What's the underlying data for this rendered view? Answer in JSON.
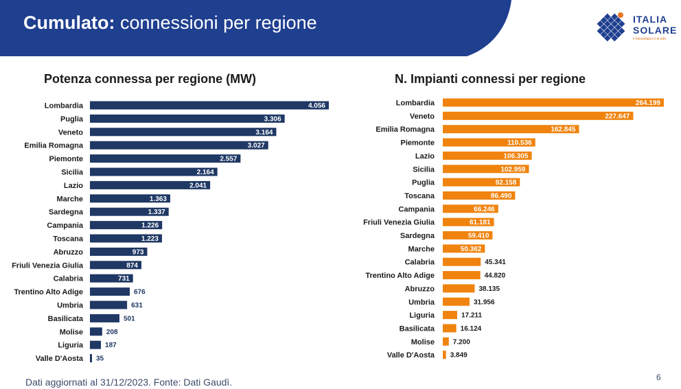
{
  "header": {
    "title_bold": "Cumulato:",
    "title_rest": "connessioni per regione"
  },
  "logo": {
    "line1": "ITALIA",
    "line2": "SOLARE",
    "tagline": "il fotovoltaico è di tutti"
  },
  "colors": {
    "header_bg": "#1f3f8f",
    "navy_bar": "#1f3864",
    "orange_bar": "#f0830e",
    "logo_blue": "#1f3f8f",
    "logo_orange": "#e87722"
  },
  "chart_data": [
    {
      "type": "bar",
      "orientation": "horizontal",
      "title": "Potenza connessa per regione (MW)",
      "categories": [
        "Lombardia",
        "Puglia",
        "Veneto",
        "Emilia Romagna",
        "Piemonte",
        "Sicilia",
        "Lazio",
        "Marche",
        "Sardegna",
        "Campania",
        "Toscana",
        "Abruzzo",
        "Friuli Venezia Giulia",
        "Calabria",
        "Trentino Alto Adige",
        "Umbria",
        "Basilicata",
        "Molise",
        "Liguria",
        "Valle D'Aosta"
      ],
      "values": [
        4056,
        3306,
        3164,
        3027,
        2557,
        2164,
        2041,
        1363,
        1337,
        1226,
        1223,
        973,
        874,
        731,
        676,
        631,
        501,
        208,
        187,
        35
      ],
      "labels": [
        "4.056",
        "3.306",
        "3.164",
        "3.027",
        "2.557",
        "2.164",
        "2.041",
        "1.363",
        "1.337",
        "1.226",
        "1.223",
        "973",
        "874",
        "731",
        "676",
        "631",
        "501",
        "208",
        "187",
        "35"
      ],
      "color": "#1f3864"
    },
    {
      "type": "bar",
      "orientation": "horizontal",
      "title": "N. Impianti connessi per regione",
      "categories": [
        "Lombardia",
        "Veneto",
        "Emilia Romagna",
        "Piemonte",
        "Lazio",
        "Sicilia",
        "Puglia",
        "Toscana",
        "Campania",
        "Friuli Venezia Giulia",
        "Sardegna",
        "Marche",
        "Calabria",
        "Trentino Alto Adige",
        "Abruzzo",
        "Umbria",
        "Liguria",
        "Basilicata",
        "Molise",
        "Valle D'Aosta"
      ],
      "values": [
        264199,
        227647,
        162845,
        110536,
        106305,
        102959,
        92158,
        86490,
        66246,
        61181,
        59410,
        50362,
        45341,
        44820,
        38135,
        31956,
        17211,
        16124,
        7200,
        3849
      ],
      "labels": [
        "264.199",
        "227.647",
        "162.845",
        "110.536",
        "106.305",
        "102.959",
        "92.158",
        "86.490",
        "66.246",
        "61.181",
        "59.410",
        "50.362",
        "45.341",
        "44.820",
        "38.135",
        "31.956",
        "17.211",
        "16.124",
        "7.200",
        "3.849"
      ],
      "color": "#f0830e"
    }
  ],
  "footnote": "Dati aggiornati al 31/12/2023. Fonte: Dati Gaudì.",
  "page_number": "6"
}
